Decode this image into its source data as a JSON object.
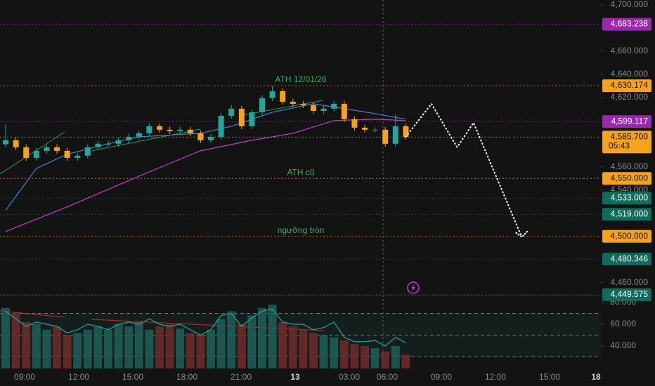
{
  "chart_data": {
    "type": "candlestick",
    "x_labels": [
      "09:00",
      "12:00",
      "15:00",
      "18:00",
      "21:00",
      "13",
      "03:00",
      "06:00",
      "09:00",
      "12:00",
      "15:00",
      "18"
    ],
    "ylim": [
      4449.5,
      4704.2
    ],
    "yticks": [
      {
        "value": 4700,
        "label": "4,700.000"
      },
      {
        "value": 4660,
        "label": "4,660.000"
      },
      {
        "value": 4640,
        "label": "4,640.000"
      },
      {
        "value": 4620,
        "label": "4,620.000"
      },
      {
        "value": 4560,
        "label": "4,560.000"
      },
      {
        "value": 4540,
        "label": "4,540.000"
      },
      {
        "value": 4460,
        "label": "4,460.000"
      }
    ],
    "up_color": "#26a69a",
    "down_color": "#f7a21b",
    "candles": {
      "open": [
        4579.5,
        4583.0,
        4576.9,
        4567.8,
        4573.9,
        4576.9,
        4573.9,
        4567.8,
        4569.7,
        4576.9,
        4580.0,
        4580.0,
        4583.0,
        4586.0,
        4589.0,
        4595.1,
        4592.1,
        4590.9,
        4592.1,
        4589.0,
        4583.0,
        4586.0,
        4604.2,
        4610.3,
        4595.1,
        4607.2,
        4619.4,
        4625.4,
        4616.3,
        4614.5,
        4613.3,
        4608.4,
        4610.3,
        4614.5,
        4601.2,
        4593.9,
        4592.1,
        4592.1,
        4580.0,
        4595.1
      ],
      "high": [
        4597.0,
        4585.5,
        4579.4,
        4576.4,
        4579.4,
        4579.4,
        4576.4,
        4572.2,
        4579.4,
        4582.5,
        4582.5,
        4585.5,
        4588.5,
        4591.5,
        4597.6,
        4597.6,
        4594.6,
        4594.6,
        4594.6,
        4591.5,
        4588.5,
        4606.7,
        4613.5,
        4612.8,
        4609.7,
        4622.0,
        4630.2,
        4627.9,
        4618.8,
        4617.0,
        4615.8,
        4612.8,
        4617.0,
        4617.0,
        4603.7,
        4596.4,
        4594.6,
        4594.6,
        4605.0,
        4597.6
      ],
      "low": [
        4577.0,
        4574.4,
        4565.3,
        4565.3,
        4571.4,
        4571.4,
        4565.3,
        4565.3,
        4567.2,
        4574.4,
        4577.5,
        4577.5,
        4580.5,
        4583.5,
        4586.5,
        4589.6,
        4588.4,
        4588.4,
        4586.5,
        4580.5,
        4580.5,
        4583.5,
        4601.7,
        4592.6,
        4592.6,
        4604.7,
        4616.9,
        4613.8,
        4612.0,
        4610.8,
        4605.9,
        4605.9,
        4607.8,
        4598.7,
        4591.4,
        4589.6,
        4589.6,
        4577.5,
        4577.5,
        4583.5
      ],
      "close": [
        4583.0,
        4576.9,
        4567.8,
        4573.9,
        4576.9,
        4573.9,
        4567.8,
        4569.7,
        4576.9,
        4580.0,
        4580.0,
        4583.0,
        4586.0,
        4589.0,
        4595.1,
        4592.1,
        4590.9,
        4592.1,
        4589.0,
        4583.0,
        4586.0,
        4604.2,
        4610.3,
        4595.1,
        4607.2,
        4619.4,
        4625.4,
        4616.3,
        4614.5,
        4613.3,
        4608.4,
        4610.3,
        4614.5,
        4601.2,
        4593.9,
        4592.1,
        4592.1,
        4580.0,
        4595.1,
        4586.0
      ]
    },
    "moving_averages": [
      {
        "color": "#4a7fd4",
        "x": [
          0,
          3,
          6,
          10,
          13,
          19,
          22,
          26,
          30,
          33,
          36,
          39
        ],
        "values": [
          4522.4,
          4558.7,
          4570.9,
          4580.0,
          4586.0,
          4589.0,
          4595.1,
          4607.2,
          4614.5,
          4610.3,
          4606.0,
          4601.2
        ]
      },
      {
        "color": "#c040c8",
        "x": [
          0,
          6,
          10,
          14,
          19,
          24,
          28,
          32,
          36,
          39
        ],
        "values": [
          4504.2,
          4525.4,
          4540.6,
          4555.7,
          4573.9,
          4583.0,
          4589.0,
          4600.0,
          4601.2,
          4600.0
        ]
      }
    ],
    "projection": {
      "color": "#ffffff",
      "x": [
        39,
        41.5,
        44,
        45.6,
        50.3
      ],
      "values": [
        4586.0,
        4614.5,
        4577.0,
        4598.1,
        4499.4
      ]
    },
    "price_levels": [
      {
        "value": 4683.238,
        "label": "4,683.238",
        "color": "#9c27b0"
      },
      {
        "value": 4630.174,
        "label": "4,630.174",
        "color": "#f7a21b",
        "note": "ATH 12/01/26"
      },
      {
        "value": 4599.117,
        "label": "4,599.117",
        "color": "#9c27b0"
      },
      {
        "value": 4585.7,
        "label": "4,585.700",
        "color": "#f7a21b",
        "countdown": "05:43"
      },
      {
        "value": 4550,
        "label": "4,550.000",
        "color": "#f7a21b",
        "note": "ATH cũ"
      },
      {
        "value": 4533,
        "label": "4,533.000",
        "color": "#0f6b5c"
      },
      {
        "value": 4519,
        "label": "4,519.000",
        "color": "#0f6b5c"
      },
      {
        "value": 4500,
        "label": "4,500.000",
        "color": "#f7a21b",
        "note": "ngưỡng tròn"
      },
      {
        "value": 4480.346,
        "label": "4,480.346",
        "color": "#0f6b5c"
      },
      {
        "value": 4449.575,
        "label": "4,449.575",
        "color": "#0f6b5c"
      }
    ],
    "oscillator": {
      "ylim": [
        19.4,
        85.8
      ],
      "yticks": [
        {
          "value": 80,
          "label": "80.000"
        },
        {
          "value": 60,
          "label": "60.000"
        },
        {
          "value": 40,
          "label": "40.000"
        }
      ],
      "levels": [
        70,
        50,
        30
      ],
      "color": "#26a69a",
      "values": [
        72,
        65,
        58,
        62,
        60,
        58,
        52,
        55,
        60,
        58,
        55,
        60,
        62,
        60,
        65,
        60,
        58,
        60,
        55,
        50,
        55,
        68,
        70,
        58,
        66,
        72,
        74,
        62,
        60,
        60,
        55,
        57,
        62,
        48,
        44,
        44,
        45,
        40,
        48,
        43
      ],
      "volume": [
        75,
        70,
        62,
        60,
        55,
        58,
        50,
        52,
        55,
        58,
        55,
        60,
        58,
        62,
        55,
        58,
        60,
        56,
        52,
        50,
        55,
        65,
        72,
        60,
        68,
        75,
        78,
        62,
        58,
        55,
        52,
        50,
        48,
        45,
        42,
        40,
        38,
        35,
        40,
        32
      ]
    }
  }
}
